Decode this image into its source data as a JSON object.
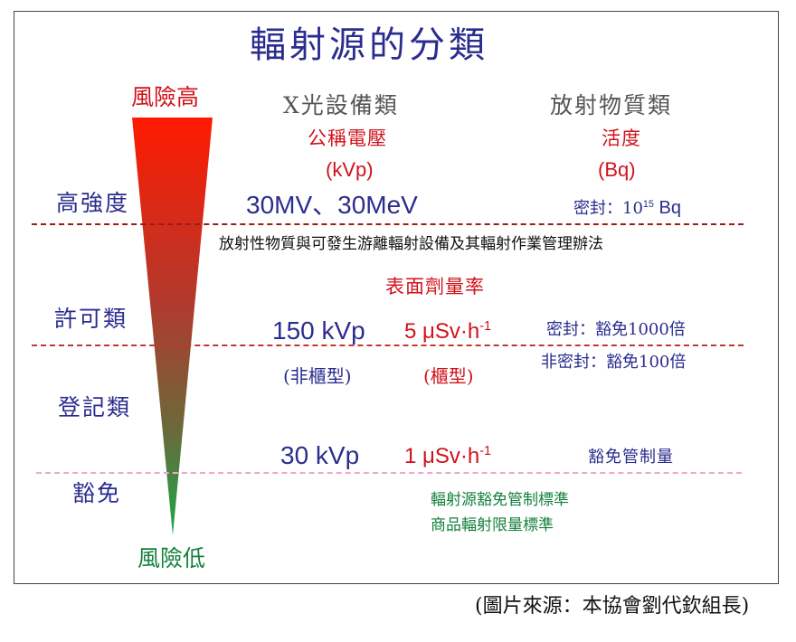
{
  "title": "輻射源的分類",
  "risk": {
    "high": "風險高",
    "low": "風險低"
  },
  "categories": {
    "high_intensity": "高強度",
    "license": "許可類",
    "registration": "登記類",
    "exempt": "豁免"
  },
  "columns": {
    "xray": {
      "header": "X光設備類",
      "sub1": "公稱電壓",
      "sub2": "(kVp)"
    },
    "radioactive": {
      "header": "放射物質類",
      "sub1": "活度",
      "sub2": "(Bq)"
    }
  },
  "rows": {
    "high": {
      "xray": "30MV、30MeV",
      "radio_prefix": "密封：10",
      "radio_exp": "15",
      "radio_suffix": " Bq"
    },
    "regulation": "放射性物質與可發生游離輻射設備及其輻射作業管理辦法",
    "dose_rate_header": "表面劑量率",
    "license": {
      "xray": "150 kVp",
      "dose_value": "5 μSv·h",
      "dose_exp": "-1",
      "radio_sealed": "密封：豁免1000倍",
      "radio_unsealed": "非密封：豁免100倍"
    },
    "license_notes": {
      "non_cabinet": "(非櫃型)",
      "cabinet": "(櫃型)"
    },
    "registration": {
      "xray": "30 kVp",
      "dose_value": "1 μSv·h",
      "dose_exp": "-1",
      "radio": "豁免管制量"
    },
    "exempt_standards": [
      "輻射源豁免管制標準",
      "商品輻射限量標準"
    ]
  },
  "source_credit": "(圖片來源：本協會劉代欽組長)",
  "colors": {
    "navy": "#2b2d8e",
    "red": "#d0121b",
    "green": "#15803d",
    "dash_red": "#9b1c1c",
    "dash_pink": "#f2a6c9",
    "cone_top": "#ff1a00",
    "cone_bottom": "#1aa84a"
  }
}
